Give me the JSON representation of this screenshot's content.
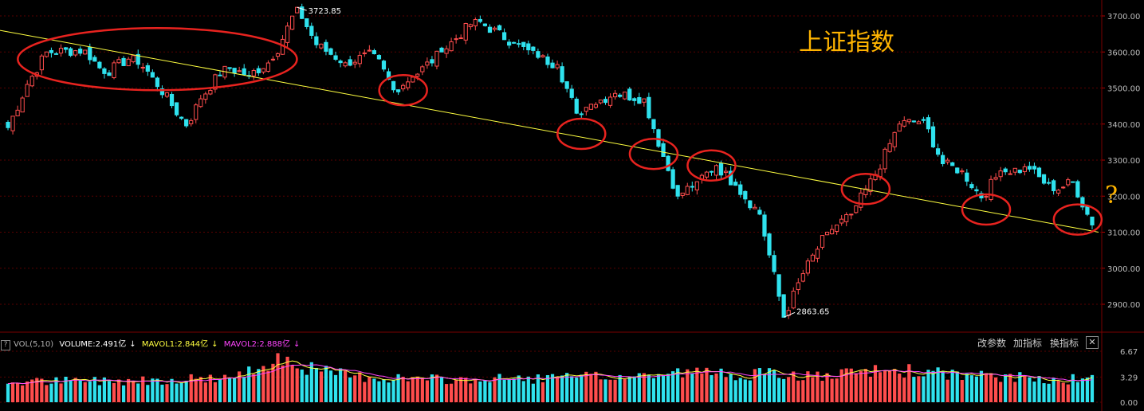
{
  "chart_data": {
    "type": "candlestick",
    "title": "上证指数",
    "annotation": "?",
    "price_axis": {
      "ticks": [
        "3700.00",
        "3600.00",
        "3500.00",
        "3400.00",
        "3300.00",
        "3200.00",
        "3100.00",
        "3000.00",
        "2900.00"
      ],
      "ylim": [
        2850,
        3730
      ],
      "grid": true
    },
    "high_label": "3723.85",
    "low_label": "2863.65",
    "colors": {
      "up": "#ff4d4d",
      "down": "#2fe2ee",
      "trend_line": "#ffff40",
      "circle": "#e8231f",
      "title": "#ffb400"
    },
    "trend_line": {
      "start_value": 3660,
      "end_value": 3100
    },
    "highlighted_touch_points": [
      {
        "index": 82,
        "value": 3494
      },
      {
        "index": 119,
        "value": 3373
      },
      {
        "index": 134,
        "value": 3317
      },
      {
        "index": 146,
        "value": 3285
      },
      {
        "index": 178,
        "value": 3220
      },
      {
        "index": 203,
        "value": 3163
      },
      {
        "index": 222,
        "value": 3135
      }
    ],
    "range_circle": {
      "start_index": 7,
      "end_index": 55,
      "value": 3580
    },
    "key_points": [
      [
        0,
        3390
      ],
      [
        4,
        3510
      ],
      [
        8,
        3600
      ],
      [
        16,
        3605
      ],
      [
        20,
        3540
      ],
      [
        26,
        3590
      ],
      [
        30,
        3530
      ],
      [
        37,
        3395
      ],
      [
        40,
        3470
      ],
      [
        45,
        3560
      ],
      [
        50,
        3535
      ],
      [
        55,
        3580
      ],
      [
        60,
        3724
      ],
      [
        64,
        3620
      ],
      [
        70,
        3570
      ],
      [
        76,
        3595
      ],
      [
        80,
        3495
      ],
      [
        84,
        3530
      ],
      [
        90,
        3600
      ],
      [
        97,
        3690
      ],
      [
        105,
        3625
      ],
      [
        110,
        3585
      ],
      [
        114,
        3565
      ],
      [
        118,
        3430
      ],
      [
        121,
        3455
      ],
      [
        126,
        3485
      ],
      [
        132,
        3470
      ],
      [
        136,
        3310
      ],
      [
        139,
        3200
      ],
      [
        143,
        3240
      ],
      [
        147,
        3285
      ],
      [
        151,
        3230
      ],
      [
        156,
        3150
      ],
      [
        161,
        2864
      ],
      [
        165,
        2985
      ],
      [
        170,
        3100
      ],
      [
        175,
        3150
      ],
      [
        180,
        3260
      ],
      [
        185,
        3400
      ],
      [
        190,
        3410
      ],
      [
        194,
        3290
      ],
      [
        198,
        3270
      ],
      [
        202,
        3195
      ],
      [
        206,
        3270
      ],
      [
        212,
        3275
      ],
      [
        217,
        3215
      ],
      [
        221,
        3240
      ],
      [
        225,
        3120
      ]
    ],
    "volume_panel": {
      "indicator": "VOL(5,10)",
      "volume_label": "VOLUME:2.491亿",
      "mavol1_label": "MAVOL1:2.844亿",
      "mavol2_label": "MAVOL2:2.888亿",
      "ticks": [
        "6.67",
        "3.29",
        "0.00"
      ],
      "ylim": [
        0,
        6.67
      ],
      "colors": {
        "volume": "#ffffff",
        "mavol1": "#ffff40",
        "mavol2": "#ff44ff"
      },
      "key_points": [
        [
          0,
          2.7
        ],
        [
          30,
          3.0
        ],
        [
          48,
          3.4
        ],
        [
          56,
          6.2
        ],
        [
          64,
          4.2
        ],
        [
          72,
          3.5
        ],
        [
          90,
          3.0
        ],
        [
          110,
          3.2
        ],
        [
          130,
          3.5
        ],
        [
          140,
          4.0
        ],
        [
          160,
          3.7
        ],
        [
          170,
          3.4
        ],
        [
          180,
          4.2
        ],
        [
          185,
          4.3
        ],
        [
          200,
          3.5
        ],
        [
          225,
          3.0
        ]
      ]
    }
  },
  "toolbar": {
    "indicator_help": "?",
    "modify_params": "改参数",
    "add_indicator": "加指标",
    "change_indicator": "换指标",
    "close": "✕"
  }
}
